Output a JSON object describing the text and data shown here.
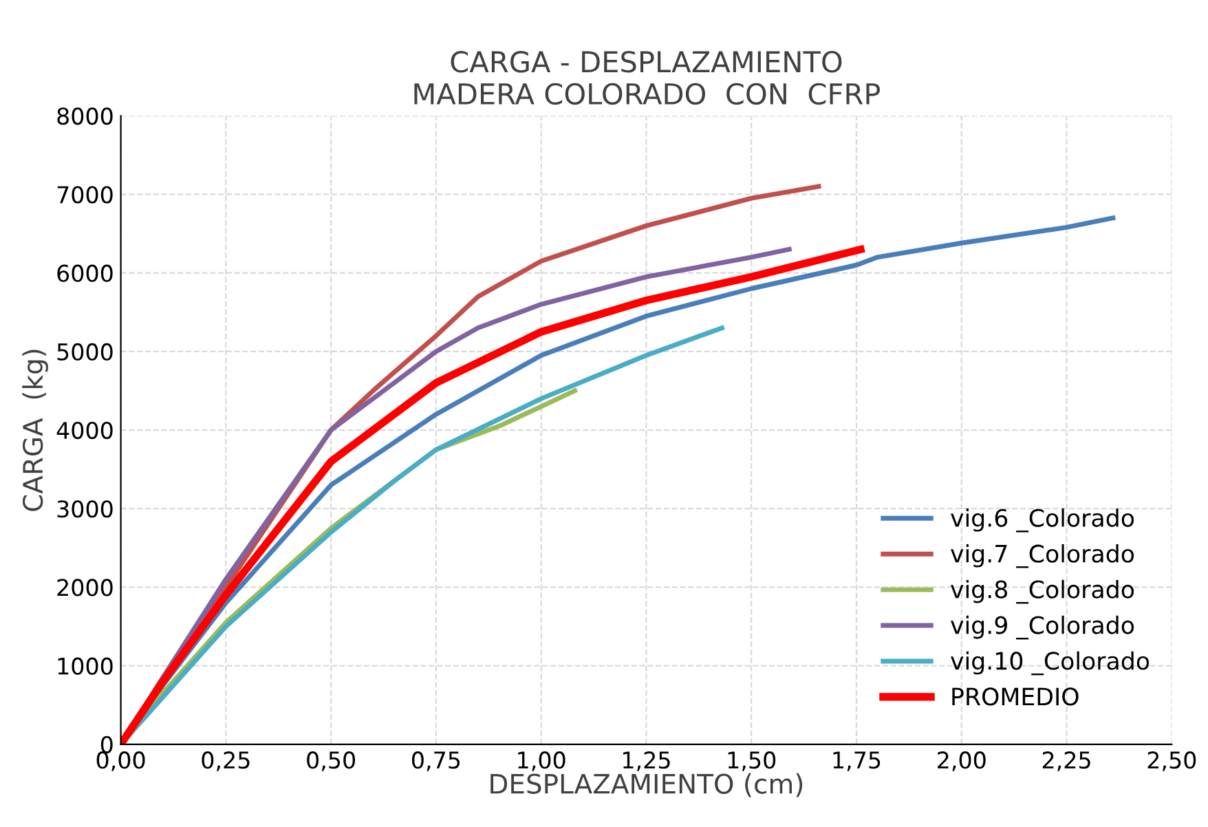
{
  "chart_data": {
    "type": "line",
    "title": "CARGA - DESPLAZAMIENTO\nMADERA COLORADO  CON  CFRP",
    "xlabel": "DESPLAZAMIENTO (cm)",
    "ylabel": "CARGA  (kg)",
    "xlim": [
      0,
      2.5
    ],
    "ylim": [
      0,
      8000
    ],
    "xticks": [
      {
        "value": 0,
        "label": "0,00"
      },
      {
        "value": 0.25,
        "label": "0,25"
      },
      {
        "value": 0.5,
        "label": "0,50"
      },
      {
        "value": 0.75,
        "label": "0,75"
      },
      {
        "value": 1.0,
        "label": "1,00"
      },
      {
        "value": 1.25,
        "label": "1,25"
      },
      {
        "value": 1.5,
        "label": "1,50"
      },
      {
        "value": 1.75,
        "label": "1,75"
      },
      {
        "value": 2.0,
        "label": "2,00"
      },
      {
        "value": 2.25,
        "label": "2,25"
      },
      {
        "value": 2.5,
        "label": "2,50"
      }
    ],
    "yticks": [
      0,
      1000,
      2000,
      3000,
      4000,
      5000,
      6000,
      7000,
      8000
    ],
    "grid": true,
    "legend": "lower right",
    "marker": "none",
    "line_style": "solid",
    "series": [
      {
        "name": "vig.6 _Colorado",
        "color": "#4a7ebb",
        "x": [
          0,
          0.1,
          0.25,
          0.5,
          0.75,
          1.0,
          1.25,
          1.5,
          1.75,
          1.8,
          2.0,
          2.25,
          2.36
        ],
        "values": [
          0,
          750,
          1800,
          3300,
          4200,
          4950,
          5450,
          5800,
          6100,
          6200,
          6380,
          6580,
          6700
        ]
      },
      {
        "name": "vig.7 _Colorado",
        "color": "#c0504d",
        "x": [
          0,
          0.1,
          0.25,
          0.5,
          0.6,
          0.75,
          0.85,
          1.0,
          1.25,
          1.5,
          1.66
        ],
        "values": [
          0,
          800,
          2000,
          4000,
          4500,
          5200,
          5700,
          6150,
          6600,
          6950,
          7100
        ]
      },
      {
        "name": "vig.8 _Colorado",
        "color": "#9bbb59",
        "x": [
          0,
          0.1,
          0.25,
          0.5,
          0.65,
          0.75,
          0.9,
          1.0,
          1.08
        ],
        "values": [
          0,
          650,
          1550,
          2750,
          3350,
          3750,
          4050,
          4300,
          4500
        ]
      },
      {
        "name": "vig.9 _Colorado",
        "color": "#8064a2",
        "x": [
          0,
          0.1,
          0.25,
          0.5,
          0.75,
          0.85,
          1.0,
          1.25,
          1.5,
          1.59
        ],
        "values": [
          0,
          850,
          2100,
          4000,
          5000,
          5300,
          5600,
          5950,
          6200,
          6300
        ]
      },
      {
        "name": "vig.10 _Colorado",
        "color": "#4bacc6",
        "x": [
          0,
          0.1,
          0.25,
          0.5,
          0.65,
          0.75,
          1.0,
          1.25,
          1.43
        ],
        "values": [
          0,
          600,
          1500,
          2700,
          3350,
          3750,
          4400,
          4950,
          5300
        ]
      },
      {
        "name": "PROMEDIO",
        "color": "#ff0000",
        "x": [
          0,
          0.1,
          0.25,
          0.5,
          0.75,
          1.0,
          1.25,
          1.5,
          1.76
        ],
        "values": [
          0,
          800,
          1900,
          3600,
          4600,
          5250,
          5650,
          5950,
          6300
        ]
      }
    ]
  }
}
